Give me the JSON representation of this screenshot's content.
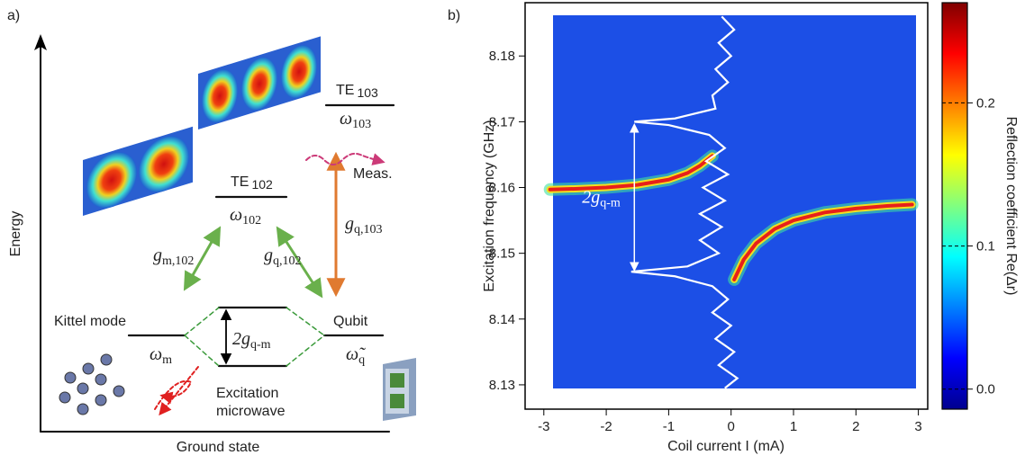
{
  "panel_labels": [
    "a)",
    "b)"
  ],
  "diagram": {
    "axis_label": "Energy",
    "ground": "Ground state",
    "kittel": "Kittel mode",
    "qubit": "Qubit",
    "meas": "Meas.",
    "excitation": [
      "Excitation",
      "microwave"
    ],
    "omega_m": {
      "main": "ω",
      "sub": "m"
    },
    "omega_q": {
      "main": "ω̃",
      "sub": "q"
    },
    "te102": {
      "main": "TE",
      "sub": "102"
    },
    "omega_102": {
      "main": "ω",
      "sub": "102"
    },
    "te103": {
      "main": "TE",
      "sub": "103"
    },
    "omega_103": {
      "main": "ω",
      "sub": "103"
    },
    "g_m102": {
      "main": "g",
      "sub": "m,102"
    },
    "g_q102": {
      "main": "g",
      "sub": "q,102"
    },
    "g_q103": {
      "main": "g",
      "sub": "q,103"
    },
    "splitting": {
      "main": "2g",
      "sub": "q-m"
    }
  },
  "chart_data": {
    "type": "heatmap",
    "x_label": "Coil current I (mA)",
    "y_label": "Excitation frequency (GHz)",
    "colorbar_label": "Reflection coefficient   Re(Δr)",
    "xlim": [
      -3.3,
      3.15
    ],
    "xticks": [
      -3,
      -2,
      -1,
      0,
      1,
      2,
      3
    ],
    "ylim": [
      8.1263,
      8.1881
    ],
    "yticks": [
      8.13,
      8.14,
      8.15,
      8.16,
      8.17,
      8.18
    ],
    "clim": [
      -0.014,
      0.27
    ],
    "cticks": [
      {
        "value": 0,
        "label": "0.0"
      },
      0.1,
      0.2
    ],
    "background_color": "#1c4fe6",
    "colorscale": [
      "#00008f",
      "#0000ff",
      "#0080ff",
      "#00ffff",
      "#80ff80",
      "#ffff00",
      "#ff8000",
      "#ff0000",
      "#800000"
    ],
    "series": [
      {
        "color": "#e8201a",
        "x": [
          -2.9,
          -2.5,
          -2,
          -1.5,
          -1,
          -0.7,
          -0.5,
          -0.3
        ],
        "values": [
          8.1597,
          8.1598,
          8.16,
          8.1604,
          8.1612,
          8.1622,
          8.1633,
          8.1648
        ]
      },
      {
        "color": "#e8201a",
        "x": [
          0.05,
          0.2,
          0.4,
          0.7,
          1,
          1.5,
          2,
          2.5,
          2.9
        ],
        "values": [
          8.146,
          8.149,
          8.1515,
          8.1537,
          8.155,
          8.1562,
          8.1568,
          8.1572,
          8.1574
        ]
      },
      {
        "color": "#ffffff",
        "x": [
          -0.15,
          0.05,
          -0.2,
          0,
          -0.25,
          -0.05,
          -0.3,
          -0.25,
          -0.9,
          -1.55,
          -1,
          -0.35,
          -0.1,
          -0.4,
          -0.05,
          -0.45,
          -0.1,
          -0.5,
          -0.15,
          -0.5,
          -0.2,
          -0.7,
          -1.6,
          -0.9,
          -0.3,
          -0.05,
          -0.3,
          0,
          -0.25,
          0.05,
          -0.2,
          0.1,
          -0.1
        ],
        "values": [
          8.186,
          8.184,
          8.182,
          8.18,
          8.178,
          8.176,
          8.174,
          8.172,
          8.1705,
          8.17,
          8.1695,
          8.168,
          8.166,
          8.164,
          8.162,
          8.16,
          8.158,
          8.156,
          8.154,
          8.152,
          8.15,
          8.148,
          8.1472,
          8.1465,
          8.145,
          8.143,
          8.141,
          8.139,
          8.137,
          8.135,
          8.133,
          8.131,
          8.1295
        ]
      }
    ],
    "annotation": {
      "main": "2g",
      "sub": "q-m",
      "x": -1.55,
      "from": 8.1695,
      "to": 8.1475
    }
  }
}
